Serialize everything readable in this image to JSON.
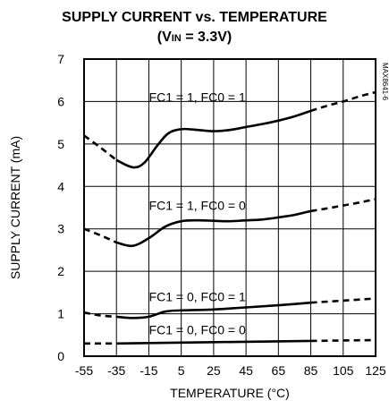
{
  "chart_data": {
    "type": "line",
    "title_main": "SUPPLY CURRENT vs. TEMPERATURE",
    "title_sub_open": "(V",
    "title_sub_subscript": "IN",
    "title_sub_rest": " = 3.3V)",
    "xlabel": "TEMPERATURE (°C)",
    "ylabel": "SUPPLY CURRENT (mA)",
    "xlim": [
      -55,
      125
    ],
    "ylim": [
      0,
      7
    ],
    "x_ticks": [
      "-55",
      "-35",
      "-15",
      "5",
      "25",
      "45",
      "65",
      "85",
      "105",
      "125"
    ],
    "y_ticks": [
      "0",
      "1",
      "2",
      "3",
      "4",
      "5",
      "6",
      "7"
    ],
    "grid": true,
    "figure_code": "MAX8641-6",
    "series": [
      {
        "name": "FC1 = 1, FC0 = 1",
        "label_pos": [
          5,
          6.0
        ],
        "dashed_left": [
          [
            -55,
            5.2
          ],
          [
            -45,
            4.92
          ],
          [
            -35,
            4.62
          ]
        ],
        "solid": [
          [
            -35,
            4.62
          ],
          [
            -25,
            4.45
          ],
          [
            -18,
            4.55
          ],
          [
            -10,
            4.95
          ],
          [
            -3,
            5.25
          ],
          [
            5,
            5.35
          ],
          [
            15,
            5.33
          ],
          [
            25,
            5.3
          ],
          [
            35,
            5.33
          ],
          [
            45,
            5.4
          ],
          [
            55,
            5.47
          ],
          [
            65,
            5.55
          ],
          [
            75,
            5.65
          ],
          [
            85,
            5.78
          ]
        ],
        "dashed_right": [
          [
            85,
            5.78
          ],
          [
            95,
            5.9
          ],
          [
            105,
            6.0
          ],
          [
            115,
            6.12
          ],
          [
            125,
            6.22
          ]
        ]
      },
      {
        "name": "FC1 = 1, FC0 = 0",
        "label_pos": [
          5,
          3.45
        ],
        "dashed_left": [
          [
            -55,
            3.0
          ],
          [
            -45,
            2.85
          ],
          [
            -35,
            2.68
          ]
        ],
        "solid": [
          [
            -35,
            2.68
          ],
          [
            -25,
            2.6
          ],
          [
            -15,
            2.78
          ],
          [
            -5,
            3.05
          ],
          [
            5,
            3.18
          ],
          [
            15,
            3.2
          ],
          [
            25,
            3.19
          ],
          [
            35,
            3.18
          ],
          [
            45,
            3.2
          ],
          [
            55,
            3.22
          ],
          [
            65,
            3.27
          ],
          [
            75,
            3.33
          ],
          [
            85,
            3.42
          ]
        ],
        "dashed_right": [
          [
            85,
            3.42
          ],
          [
            95,
            3.48
          ],
          [
            105,
            3.55
          ],
          [
            115,
            3.62
          ],
          [
            125,
            3.7
          ]
        ]
      },
      {
        "name": "FC1 = 0, FC0 = 1",
        "label_pos": [
          5,
          1.3
        ],
        "dashed_left": [
          [
            -55,
            1.03
          ],
          [
            -45,
            0.96
          ],
          [
            -35,
            0.93
          ]
        ],
        "solid": [
          [
            -35,
            0.93
          ],
          [
            -25,
            0.9
          ],
          [
            -15,
            0.93
          ],
          [
            -5,
            1.05
          ],
          [
            5,
            1.08
          ],
          [
            25,
            1.1
          ],
          [
            45,
            1.15
          ],
          [
            65,
            1.2
          ],
          [
            85,
            1.26
          ]
        ],
        "dashed_right": [
          [
            85,
            1.26
          ],
          [
            105,
            1.31
          ],
          [
            125,
            1.36
          ]
        ]
      },
      {
        "name": "FC1 = 0, FC0 = 0",
        "label_pos": [
          5,
          0.52
        ],
        "dashed_left": [
          [
            -55,
            0.3
          ],
          [
            -35,
            0.3
          ]
        ],
        "solid": [
          [
            -35,
            0.3
          ],
          [
            85,
            0.36
          ]
        ],
        "dashed_right": [
          [
            85,
            0.36
          ],
          [
            125,
            0.38
          ]
        ]
      }
    ]
  }
}
